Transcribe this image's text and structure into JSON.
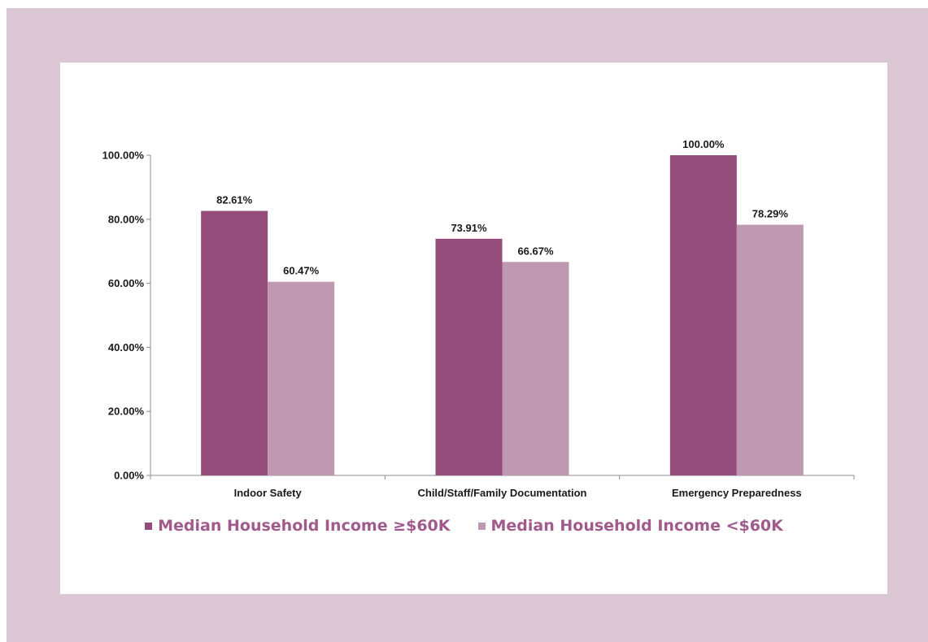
{
  "chart_data": {
    "type": "bar",
    "categories": [
      "Indoor Safety",
      "Child/Staff/Family Documentation",
      "Emergency Preparedness"
    ],
    "series": [
      {
        "name": "Median Household Income ≥$60K",
        "values": [
          82.61,
          73.91,
          100.0
        ],
        "labels": [
          "82.61%",
          "73.91%",
          "100.00%"
        ],
        "color": "#944d7b"
      },
      {
        "name": "Median Household Income <$60K",
        "values": [
          60.47,
          66.67,
          78.29
        ],
        "labels": [
          "60.47%",
          "66.67%",
          "78.29%"
        ],
        "color": "#bf98b2"
      }
    ],
    "yticks": [
      "0.00%",
      "20.00%",
      "40.00%",
      "60.00%",
      "80.00%",
      "100.00%"
    ],
    "ylim": [
      0,
      100
    ],
    "title": "",
    "xlabel": "",
    "ylabel": "",
    "grid": false,
    "legend_position": "bottom"
  },
  "colors": {
    "frame": "#dcc7d5",
    "legend_text": "#a05a8c"
  }
}
